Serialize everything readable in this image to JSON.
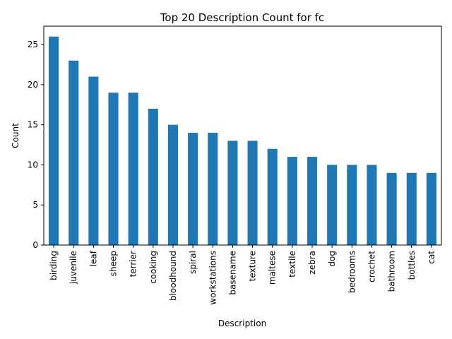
{
  "chart_data": {
    "type": "bar",
    "title": "Top 20 Description Count for fc",
    "xlabel": "Description",
    "ylabel": "Count",
    "categories": [
      "birding",
      "juvenile",
      "leaf",
      "sheep",
      "terrier",
      "cooking",
      "bloodhound",
      "spiral",
      "workstations",
      "basename",
      "texture",
      "maltese",
      "textile",
      "zebra",
      "dog",
      "bedrooms",
      "crochet",
      "bathroom",
      "bottles",
      "cat"
    ],
    "values": [
      26,
      23,
      21,
      19,
      19,
      17,
      15,
      14,
      14,
      13,
      13,
      12,
      11,
      11,
      10,
      10,
      10,
      9,
      9,
      9
    ],
    "ylim": [
      0,
      27.3
    ],
    "yticks": [
      0,
      5,
      10,
      15,
      20,
      25
    ],
    "bar_color": "#1f77b4",
    "grid": false,
    "legend": "none"
  }
}
